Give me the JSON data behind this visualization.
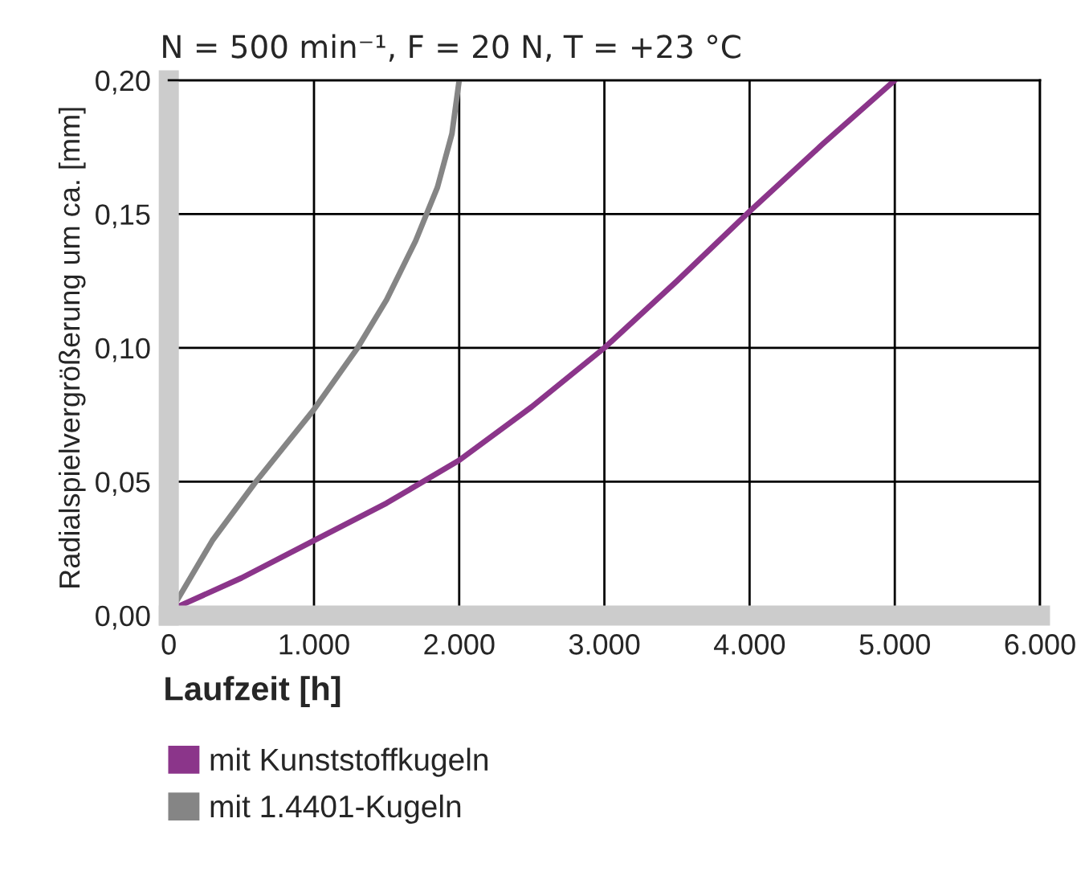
{
  "chart_data": {
    "type": "line",
    "title": "N = 500 min⁻¹, F = 20 N, T = +23 °C",
    "xlabel": "Laufzeit [h]",
    "ylabel": "Radialspielvergrößerung um ca. [mm]",
    "series": [
      {
        "name": "mit Kunststoffkugeln",
        "color": "#8b358a",
        "x": [
          50,
          500,
          1000,
          1500,
          2000,
          2500,
          3000,
          3500,
          4000,
          4500,
          5000
        ],
        "values": [
          0.003,
          0.014,
          0.028,
          0.042,
          0.058,
          0.078,
          0.1,
          0.125,
          0.151,
          0.176,
          0.2
        ]
      },
      {
        "name": "mit 1.4401-Kugeln",
        "color": "#858585",
        "x": [
          50,
          300,
          600,
          1000,
          1300,
          1500,
          1700,
          1850,
          1950,
          2000
        ],
        "values": [
          0.005,
          0.028,
          0.05,
          0.077,
          0.1,
          0.118,
          0.14,
          0.16,
          0.18,
          0.2
        ]
      }
    ],
    "xlim": [
      0,
      6000
    ],
    "xticks": [
      {
        "value": 0,
        "label": "0"
      },
      {
        "value": 1000,
        "label": "1.000"
      },
      {
        "value": 2000,
        "label": "2.000"
      },
      {
        "value": 3000,
        "label": "3.000"
      },
      {
        "value": 4000,
        "label": "4.000"
      },
      {
        "value": 5000,
        "label": "5.000"
      },
      {
        "value": 6000,
        "label": "6.000"
      }
    ],
    "ylim": [
      0,
      0.2
    ],
    "yticks": [
      {
        "value": 0,
        "label": "0,00"
      },
      {
        "value": 0.05,
        "label": "0,05"
      },
      {
        "value": 0.1,
        "label": "0,10"
      },
      {
        "value": 0.15,
        "label": "0,15"
      },
      {
        "value": 0.2,
        "label": "0,20"
      }
    ],
    "grid": true,
    "legend": "bottom",
    "line_style": "solid",
    "marker": "none"
  }
}
